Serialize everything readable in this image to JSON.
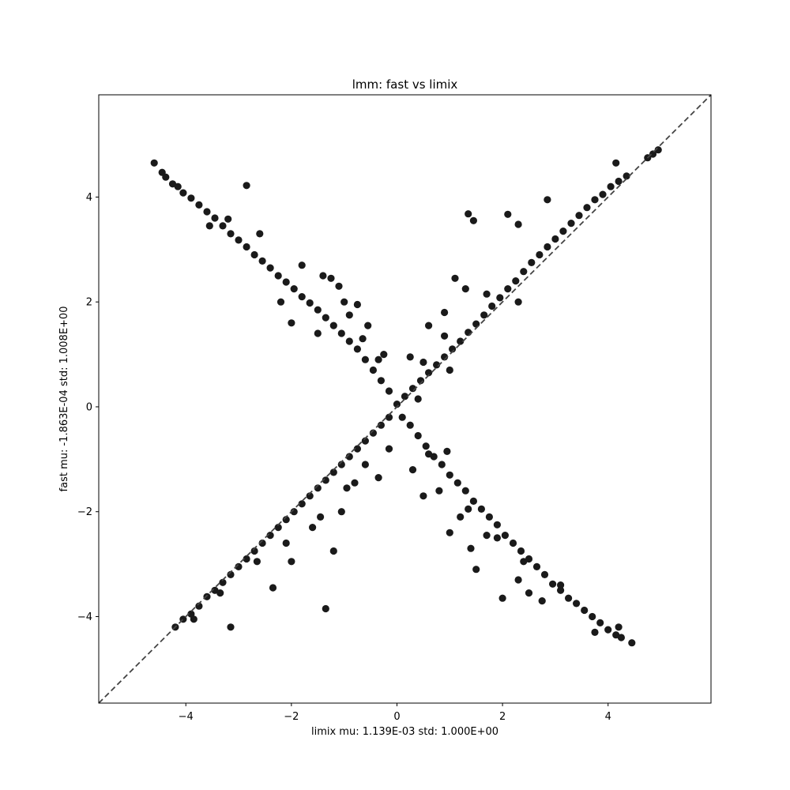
{
  "chart_data": {
    "type": "scatter",
    "title": "lmm: fast vs limix",
    "xlabel": "limix mu: 1.139E-03 std: 1.000E+00",
    "ylabel": "fast mu: -1.863E-04 std: 1.008E+00",
    "xlim": [
      -5.65,
      5.95
    ],
    "ylim": [
      -5.65,
      5.95
    ],
    "x_ticks": [
      -4,
      -2,
      0,
      2,
      4
    ],
    "y_ticks": [
      -4,
      -2,
      0,
      2,
      4
    ],
    "x_tick_labels": [
      "−4",
      "−2",
      "0",
      "2",
      "4"
    ],
    "y_tick_labels": [
      "−4",
      "−2",
      "0",
      "2",
      "4"
    ],
    "grid": false,
    "reference_line": {
      "type": "y=x",
      "style": "dashed",
      "color": "#444444"
    },
    "colors": {
      "points": "#1a1a1a"
    },
    "series": [
      {
        "values": [
          [
            -4.6,
            4.65
          ],
          [
            -4.45,
            4.47
          ],
          [
            -4.38,
            4.38
          ],
          [
            -4.25,
            4.25
          ],
          [
            -4.15,
            4.2
          ],
          [
            -4.05,
            4.08
          ],
          [
            -3.9,
            3.98
          ],
          [
            -3.75,
            3.85
          ],
          [
            -3.6,
            3.72
          ],
          [
            -3.45,
            3.6
          ],
          [
            -3.3,
            3.45
          ],
          [
            -3.15,
            3.3
          ],
          [
            -3.0,
            3.18
          ],
          [
            -2.85,
            3.05
          ],
          [
            -2.7,
            2.9
          ],
          [
            -2.55,
            2.78
          ],
          [
            -2.4,
            2.65
          ],
          [
            -2.25,
            2.5
          ],
          [
            -2.1,
            2.38
          ],
          [
            -1.95,
            2.25
          ],
          [
            -1.8,
            2.1
          ],
          [
            -1.65,
            1.98
          ],
          [
            -1.5,
            1.85
          ],
          [
            -1.35,
            1.7
          ],
          [
            -1.2,
            1.55
          ],
          [
            -1.05,
            1.4
          ],
          [
            -0.9,
            1.25
          ],
          [
            -0.75,
            1.1
          ],
          [
            -0.6,
            0.9
          ],
          [
            -0.45,
            0.7
          ],
          [
            -0.3,
            0.5
          ],
          [
            -0.15,
            0.3
          ],
          [
            -2.85,
            4.22
          ],
          [
            -3.2,
            3.58
          ],
          [
            -3.55,
            3.45
          ],
          [
            -2.6,
            3.3
          ],
          [
            -1.8,
            2.7
          ],
          [
            -1.4,
            2.5
          ],
          [
            -1.0,
            2.0
          ],
          [
            -0.9,
            1.75
          ],
          [
            -0.75,
            1.95
          ],
          [
            -1.1,
            2.3
          ],
          [
            -1.5,
            1.4
          ],
          [
            -2.2,
            2.0
          ],
          [
            -2.0,
            1.6
          ],
          [
            -0.65,
            1.3
          ],
          [
            -0.55,
            1.55
          ],
          [
            -0.35,
            0.9
          ],
          [
            -0.25,
            1.0
          ],
          [
            -1.25,
            2.45
          ],
          [
            0.1,
            -0.2
          ],
          [
            0.25,
            -0.35
          ],
          [
            0.4,
            -0.55
          ],
          [
            0.55,
            -0.75
          ],
          [
            0.7,
            -0.95
          ],
          [
            0.85,
            -1.1
          ],
          [
            1.0,
            -1.3
          ],
          [
            1.15,
            -1.45
          ],
          [
            1.3,
            -1.6
          ],
          [
            1.45,
            -1.8
          ],
          [
            1.6,
            -1.95
          ],
          [
            1.75,
            -2.1
          ],
          [
            1.9,
            -2.25
          ],
          [
            2.05,
            -2.45
          ],
          [
            2.2,
            -2.6
          ],
          [
            2.35,
            -2.75
          ],
          [
            2.5,
            -2.9
          ],
          [
            2.65,
            -3.05
          ],
          [
            2.8,
            -3.2
          ],
          [
            2.95,
            -3.38
          ],
          [
            3.1,
            -3.5
          ],
          [
            3.25,
            -3.65
          ],
          [
            3.4,
            -3.75
          ],
          [
            3.55,
            -3.88
          ],
          [
            3.7,
            -4.0
          ],
          [
            3.85,
            -4.12
          ],
          [
            4.0,
            -4.25
          ],
          [
            4.15,
            -4.35
          ],
          [
            4.25,
            -4.4
          ],
          [
            4.45,
            -4.5
          ],
          [
            0.3,
            -1.2
          ],
          [
            0.5,
            -1.7
          ],
          [
            0.8,
            -1.6
          ],
          [
            1.0,
            -2.4
          ],
          [
            1.2,
            -2.1
          ],
          [
            1.4,
            -2.7
          ],
          [
            1.5,
            -3.1
          ],
          [
            1.9,
            -2.5
          ],
          [
            2.0,
            -3.65
          ],
          [
            2.3,
            -3.3
          ],
          [
            2.5,
            -3.55
          ],
          [
            2.75,
            -3.7
          ],
          [
            3.1,
            -3.4
          ],
          [
            3.75,
            -4.3
          ],
          [
            4.2,
            -4.2
          ],
          [
            0.6,
            -0.9
          ],
          [
            0.95,
            -0.85
          ],
          [
            1.35,
            -1.95
          ],
          [
            1.7,
            -2.45
          ],
          [
            2.4,
            -2.95
          ],
          [
            -4.2,
            -4.2
          ],
          [
            -4.05,
            -4.05
          ],
          [
            -3.9,
            -3.95
          ],
          [
            -3.75,
            -3.8
          ],
          [
            -3.6,
            -3.62
          ],
          [
            -3.45,
            -3.5
          ],
          [
            -3.3,
            -3.35
          ],
          [
            -3.15,
            -3.2
          ],
          [
            -3.0,
            -3.05
          ],
          [
            -2.85,
            -2.9
          ],
          [
            -2.7,
            -2.75
          ],
          [
            -2.55,
            -2.6
          ],
          [
            -2.4,
            -2.45
          ],
          [
            -2.25,
            -2.3
          ],
          [
            -2.1,
            -2.15
          ],
          [
            -1.95,
            -2.0
          ],
          [
            -1.8,
            -1.85
          ],
          [
            -1.65,
            -1.7
          ],
          [
            -1.5,
            -1.55
          ],
          [
            -1.35,
            -1.4
          ],
          [
            -1.2,
            -1.25
          ],
          [
            -1.05,
            -1.1
          ],
          [
            -0.9,
            -0.95
          ],
          [
            -0.75,
            -0.8
          ],
          [
            -0.6,
            -0.65
          ],
          [
            -0.45,
            -0.5
          ],
          [
            -0.3,
            -0.35
          ],
          [
            -0.15,
            -0.2
          ],
          [
            -3.85,
            -4.05
          ],
          [
            -3.15,
            -4.2
          ],
          [
            -1.35,
            -3.85
          ],
          [
            -1.2,
            -2.75
          ],
          [
            -2.35,
            -3.45
          ],
          [
            -2.0,
            -2.95
          ],
          [
            -1.6,
            -2.3
          ],
          [
            -1.05,
            -2.0
          ],
          [
            -0.8,
            -1.45
          ],
          [
            -0.35,
            -1.35
          ],
          [
            -0.15,
            -0.8
          ],
          [
            -2.65,
            -2.95
          ],
          [
            -3.35,
            -3.55
          ],
          [
            -2.1,
            -2.6
          ],
          [
            -1.45,
            -2.1
          ],
          [
            -0.6,
            -1.1
          ],
          [
            -0.95,
            -1.55
          ],
          [
            0.0,
            0.05
          ],
          [
            0.15,
            0.2
          ],
          [
            0.3,
            0.35
          ],
          [
            0.45,
            0.5
          ],
          [
            0.6,
            0.65
          ],
          [
            0.75,
            0.8
          ],
          [
            0.9,
            0.95
          ],
          [
            1.05,
            1.1
          ],
          [
            1.2,
            1.25
          ],
          [
            1.35,
            1.42
          ],
          [
            1.5,
            1.58
          ],
          [
            1.65,
            1.75
          ],
          [
            1.8,
            1.92
          ],
          [
            1.95,
            2.08
          ],
          [
            2.1,
            2.25
          ],
          [
            2.25,
            2.4
          ],
          [
            2.4,
            2.58
          ],
          [
            2.55,
            2.75
          ],
          [
            2.7,
            2.9
          ],
          [
            2.85,
            3.05
          ],
          [
            3.0,
            3.2
          ],
          [
            3.15,
            3.35
          ],
          [
            3.3,
            3.5
          ],
          [
            3.45,
            3.65
          ],
          [
            3.6,
            3.8
          ],
          [
            3.75,
            3.95
          ],
          [
            3.9,
            4.05
          ],
          [
            4.05,
            4.2
          ],
          [
            4.2,
            4.3
          ],
          [
            4.35,
            4.4
          ],
          [
            4.75,
            4.75
          ],
          [
            4.85,
            4.82
          ],
          [
            4.95,
            4.9
          ],
          [
            4.15,
            4.65
          ],
          [
            1.35,
            3.68
          ],
          [
            1.45,
            3.55
          ],
          [
            2.1,
            3.67
          ],
          [
            2.3,
            3.48
          ],
          [
            2.85,
            3.95
          ],
          [
            2.3,
            2.0
          ],
          [
            1.1,
            2.45
          ],
          [
            0.6,
            1.55
          ],
          [
            0.9,
            1.8
          ],
          [
            0.5,
            0.85
          ],
          [
            0.25,
            0.95
          ],
          [
            1.7,
            2.15
          ],
          [
            1.3,
            2.25
          ],
          [
            0.4,
            0.15
          ],
          [
            1.0,
            0.7
          ],
          [
            0.9,
            1.35
          ]
        ]
      }
    ]
  }
}
